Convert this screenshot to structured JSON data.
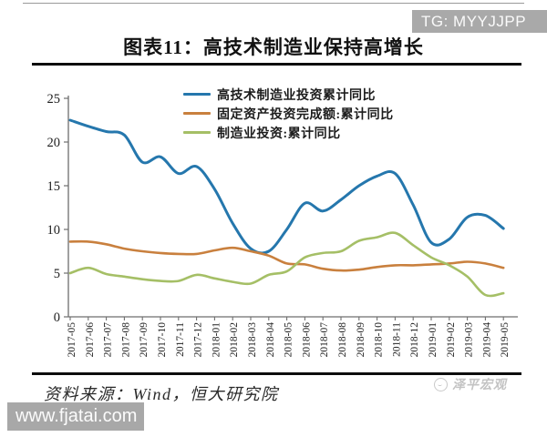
{
  "header": {
    "title": "图表11：高技术制造业保持高增长"
  },
  "watermarks": {
    "tg_badge": "TG: MYYJJPP",
    "site_badge": "www.fjatai.com",
    "brand": "泽平宏观"
  },
  "footer": {
    "source": "资料来源：Wind，恒大研究院"
  },
  "chart_data": {
    "type": "line",
    "title": "图表11：高技术制造业保持高增长",
    "xlabel": "",
    "ylabel": "",
    "ylim": [
      0,
      25
    ],
    "yticks": [
      0,
      5,
      10,
      15,
      20,
      25
    ],
    "grid": false,
    "legend_position": "top-center",
    "categories": [
      "2017-05",
      "2017-06",
      "2017-07",
      "2017-08",
      "2017-09",
      "2017-10",
      "2017-11",
      "2017-12",
      "2018-01",
      "2018-02",
      "2018-03",
      "2018-04",
      "2018-05",
      "2018-06",
      "2018-07",
      "2018-08",
      "2018-09",
      "2018-10",
      "2018-11",
      "2018-12",
      "2019-01",
      "2019-02",
      "2019-03",
      "2019-04",
      "2019-05"
    ],
    "series": [
      {
        "name": "高技术制造业投资累计同比",
        "color": "#2577AD",
        "stroke_width": 3,
        "values": [
          22.5,
          21.8,
          21.2,
          20.8,
          17.7,
          18.3,
          16.4,
          17.2,
          14.6,
          10.7,
          7.8,
          7.5,
          10.0,
          13.0,
          12.1,
          13.4,
          15.0,
          16.1,
          16.4,
          12.8,
          8.5,
          8.9,
          11.4,
          11.6,
          10.1
        ]
      },
      {
        "name": "固定资产投资完成额:累计同比",
        "color": "#C9803E",
        "stroke_width": 2.6,
        "values": [
          8.6,
          8.6,
          8.3,
          7.8,
          7.5,
          7.3,
          7.2,
          7.2,
          7.6,
          7.9,
          7.5,
          7.0,
          6.1,
          6.0,
          5.5,
          5.3,
          5.4,
          5.7,
          5.9,
          5.9,
          6.0,
          6.1,
          6.3,
          6.1,
          5.6
        ]
      },
      {
        "name": "制造业投资:累计同比",
        "color": "#A5BF66",
        "stroke_width": 2.6,
        "values": [
          5.0,
          5.6,
          4.9,
          4.6,
          4.3,
          4.1,
          4.1,
          4.8,
          4.4,
          4.0,
          3.8,
          4.8,
          5.2,
          6.8,
          7.3,
          7.5,
          8.7,
          9.1,
          9.6,
          8.2,
          6.8,
          5.9,
          4.6,
          2.5,
          2.7
        ]
      }
    ]
  }
}
